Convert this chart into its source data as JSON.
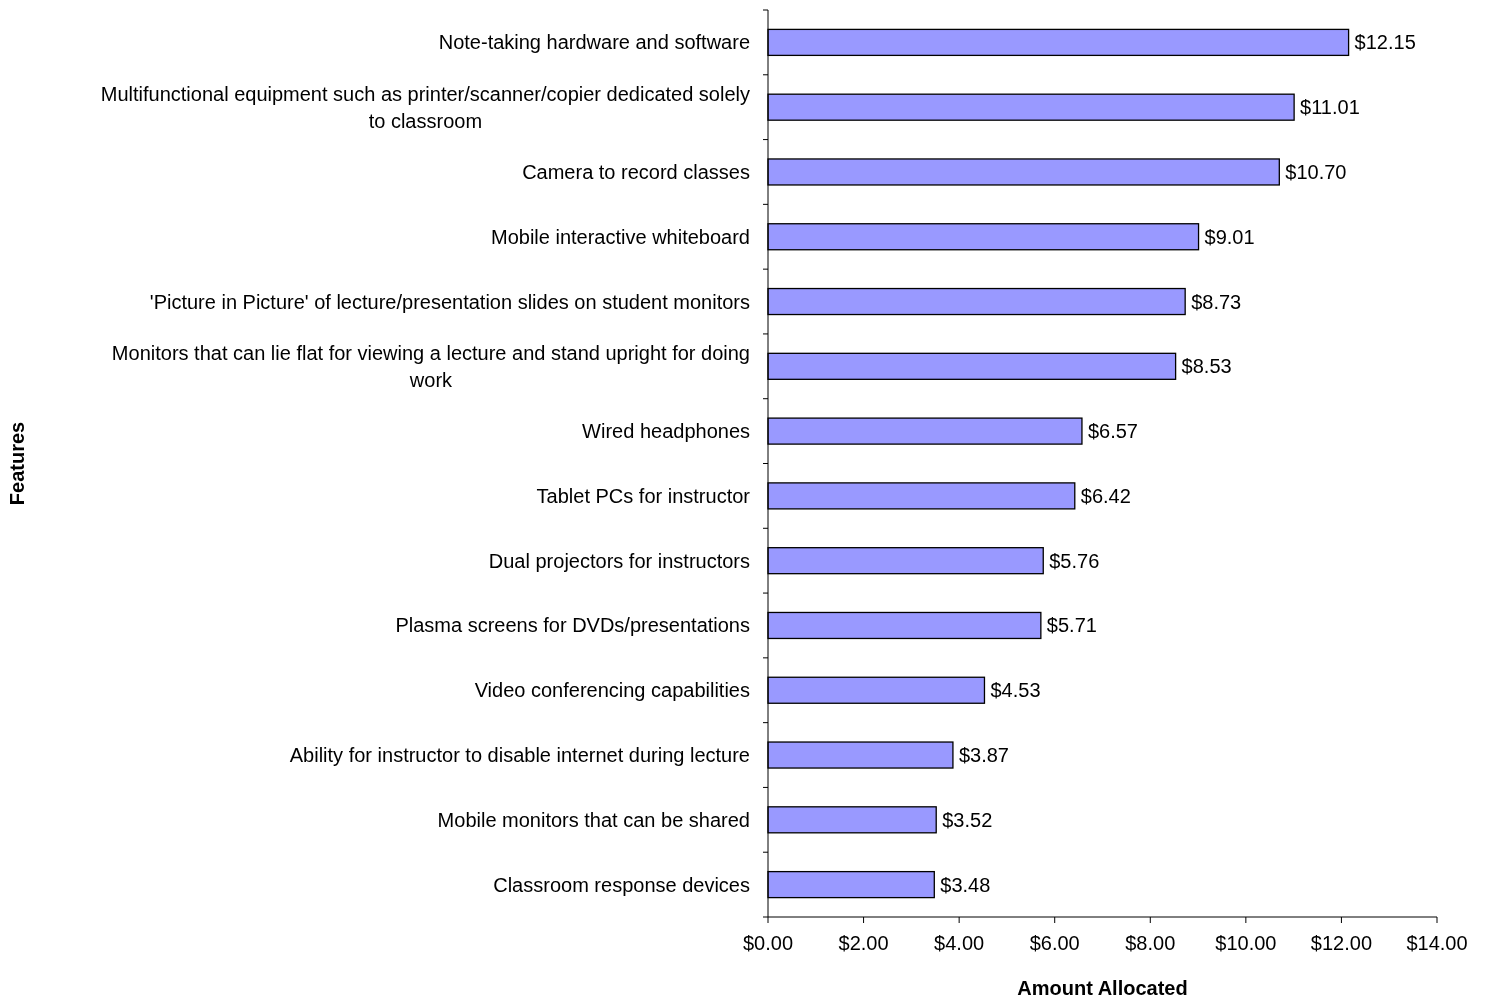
{
  "chart_data": {
    "type": "bar",
    "orientation": "horizontal",
    "xlabel": "Amount Allocated",
    "ylabel": "Features",
    "categories": [
      "Note-taking hardware and software",
      "Multifunctional equipment such as printer/scanner/copier dedicated solely to classroom",
      "Camera to record classes",
      "Mobile interactive whiteboard",
      "'Picture in Picture' of lecture/presentation slides on student monitors",
      "Monitors that can lie flat for viewing a lecture and stand upright for doing work",
      "Wired headphones",
      "Tablet PCs for instructor",
      "Dual projectors for instructors",
      "Plasma screens for DVDs/presentations",
      "Video conferencing capabilities",
      "Ability for instructor to disable internet during lecture",
      "Mobile monitors that can be shared",
      "Classroom response devices"
    ],
    "values": [
      12.15,
      11.01,
      10.7,
      9.01,
      8.73,
      8.53,
      6.57,
      6.42,
      5.76,
      5.71,
      4.53,
      3.87,
      3.52,
      3.48
    ],
    "value_labels": [
      "$12.15",
      "$11.01",
      "$10.70",
      "$9.01",
      "$8.73",
      "$8.53",
      "$6.57",
      "$6.42",
      "$5.76",
      "$5.71",
      "$4.53",
      "$3.87",
      "$3.52",
      "$3.48"
    ],
    "color": "#9999ff",
    "xlim": [
      0,
      14
    ],
    "xticks": [
      {
        "value": 0,
        "label": "$0.00"
      },
      {
        "value": 2,
        "label": "$2.00"
      },
      {
        "value": 4,
        "label": "$4.00"
      },
      {
        "value": 6,
        "label": "$6.00"
      },
      {
        "value": 8,
        "label": "$8.00"
      },
      {
        "value": 10,
        "label": "$10.00"
      },
      {
        "value": 12,
        "label": "$12.00"
      },
      {
        "value": 14,
        "label": "$14.00"
      }
    ],
    "grid": false
  }
}
